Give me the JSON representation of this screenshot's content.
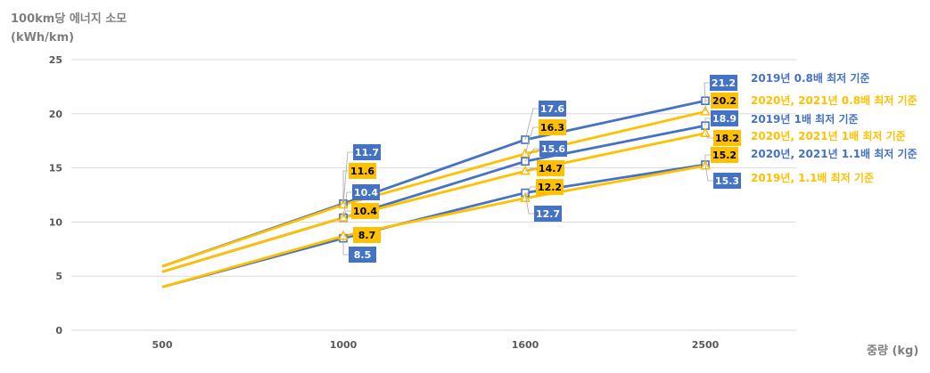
{
  "chart_data": {
    "type": "line",
    "ylabel_line1": "100km당 에너지 소모",
    "ylabel_line2": "(kWh/km)",
    "xlabel": "중량 (kg)",
    "categories": [
      "500",
      "1000",
      "1600",
      "2500"
    ],
    "ylim": [
      0,
      25
    ],
    "yticks": [
      "0",
      "5",
      "10",
      "15",
      "20",
      "25"
    ],
    "grid": true,
    "colors": {
      "blue": "#4472C4",
      "gold": "#FFC000",
      "axis_text": "#595959",
      "grid": "#D9D9D9"
    },
    "series": [
      {
        "name": "2019년 0.8배 최저 기준",
        "color": "#4472C4",
        "marker": "square",
        "values": [
          5.9,
          11.7,
          17.6,
          21.2
        ],
        "labels": [
          "",
          "11.7",
          "17.6",
          "21.2"
        ]
      },
      {
        "name": "2020년, 2021년 0.8배 최저 기준",
        "color": "#FFC000",
        "marker": "triangle",
        "values": [
          5.9,
          11.6,
          16.3,
          20.2
        ],
        "labels": [
          "",
          "11.6",
          "16.3",
          "20.2"
        ]
      },
      {
        "name": "2019년 1배 최저 기준",
        "color": "#4472C4",
        "marker": "square",
        "values": [
          5.4,
          10.4,
          15.6,
          18.9
        ],
        "labels": [
          "",
          "10.4",
          "15.6",
          "18.9"
        ]
      },
      {
        "name": "2020년, 2021년 1배 최저 기준",
        "color": "#FFC000",
        "marker": "triangle",
        "values": [
          5.4,
          10.4,
          14.7,
          18.2
        ],
        "labels": [
          "",
          "10.4",
          "14.7",
          "18.2"
        ]
      },
      {
        "name": "2020년, 2021년 1.1배 최저 기준",
        "color": "#4472C4",
        "marker": "square",
        "values": [
          4.0,
          8.5,
          12.7,
          15.3
        ],
        "labels": [
          "",
          "8.5",
          "12.7",
          "15.3"
        ]
      },
      {
        "name": "2019년, 1.1배 최저 기준",
        "color": "#FFC000",
        "marker": "triangle",
        "values": [
          4.0,
          8.7,
          12.2,
          15.2
        ],
        "labels": [
          "",
          "8.7",
          "12.2",
          "15.2"
        ]
      }
    ]
  }
}
